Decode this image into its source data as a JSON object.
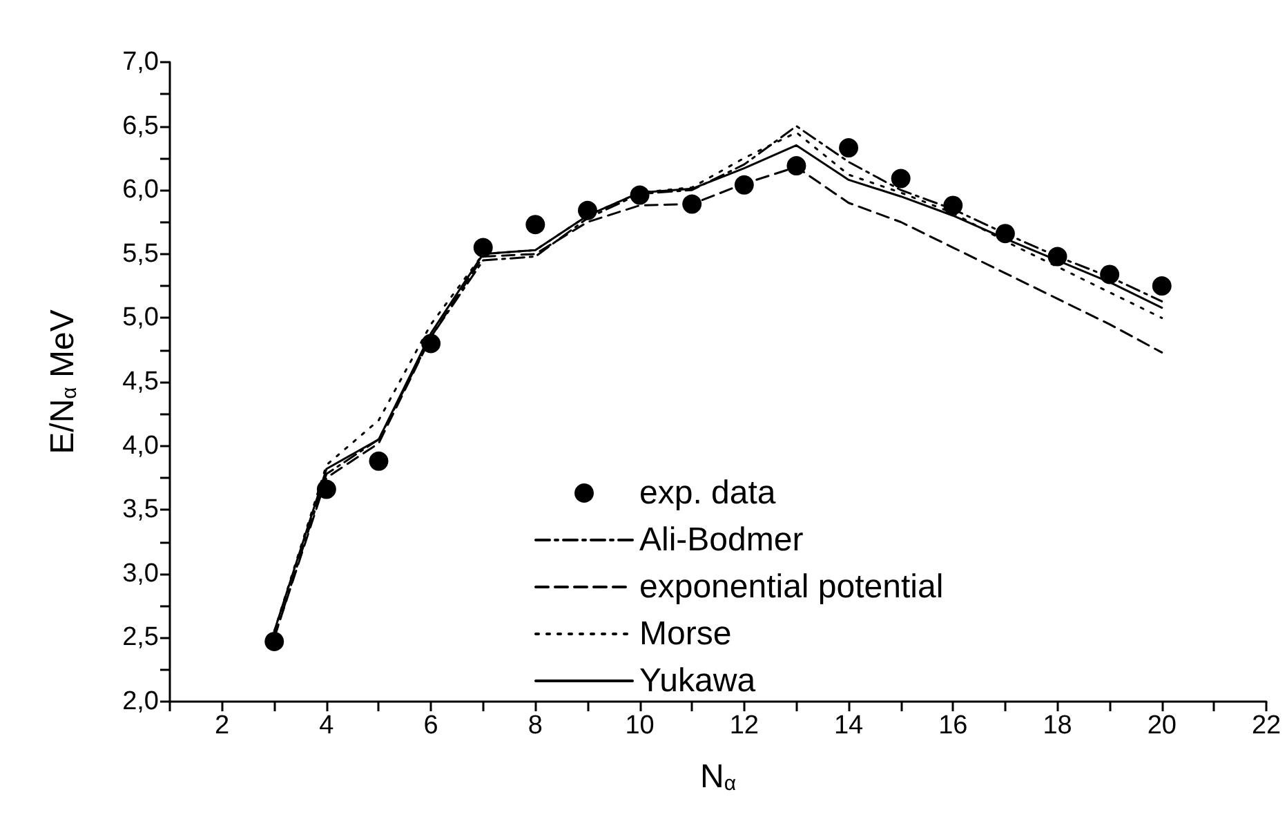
{
  "chart_data": {
    "type": "line",
    "xlabel": "N$_{α}$",
    "ylabel": "E/N$_{α}$ MeV",
    "x": [
      3,
      4,
      5,
      6,
      7,
      8,
      9,
      10,
      11,
      12,
      13,
      14,
      15,
      16,
      17,
      18,
      19,
      20
    ],
    "series": [
      {
        "name": "exp. data",
        "type": "scatter",
        "marker": "circle",
        "color": "#000000",
        "values": [
          2.47,
          3.66,
          3.88,
          4.8,
          5.55,
          5.73,
          5.84,
          5.96,
          5.89,
          6.04,
          6.19,
          6.33,
          6.09,
          5.88,
          5.66,
          5.48,
          5.34,
          5.25
        ]
      },
      {
        "name": "Ali-Bodmer",
        "line_style": "dashdot",
        "color": "#000000",
        "values": [
          2.5,
          3.78,
          4.05,
          4.85,
          5.45,
          5.48,
          5.78,
          5.97,
          6.0,
          6.2,
          6.5,
          6.22,
          6.0,
          5.85,
          5.66,
          5.48,
          5.32,
          5.13
        ]
      },
      {
        "name": "exponential potential",
        "line_style": "dashed",
        "color": "#000000",
        "values": [
          2.5,
          3.75,
          4.02,
          4.85,
          5.48,
          5.5,
          5.75,
          5.88,
          5.89,
          6.05,
          6.18,
          5.9,
          5.75,
          5.55,
          5.35,
          5.15,
          4.95,
          4.73
        ]
      },
      {
        "name": "Morse",
        "line_style": "dotted",
        "color": "#000000",
        "values": [
          2.55,
          3.85,
          4.2,
          4.95,
          5.5,
          5.53,
          5.8,
          5.98,
          6.02,
          6.25,
          6.45,
          6.12,
          5.98,
          5.82,
          5.6,
          5.4,
          5.2,
          5.0
        ]
      },
      {
        "name": "Yukawa",
        "line_style": "solid",
        "color": "#000000",
        "values": [
          2.55,
          3.82,
          4.05,
          4.88,
          5.5,
          5.53,
          5.8,
          5.98,
          6.01,
          6.17,
          6.35,
          6.08,
          5.95,
          5.8,
          5.62,
          5.45,
          5.28,
          5.08
        ]
      }
    ],
    "xlim": [
      1,
      22
    ],
    "xticks": [
      2,
      4,
      6,
      8,
      10,
      12,
      14,
      16,
      18,
      20,
      22
    ],
    "ylim": [
      2,
      7
    ],
    "yticks": [
      {
        "value": 2,
        "label": "2,0"
      },
      {
        "value": 2.5,
        "label": "2,5"
      },
      {
        "value": 3,
        "label": "3,0"
      },
      {
        "value": 3.5,
        "label": "3,5"
      },
      {
        "value": 4,
        "label": "4,0"
      },
      {
        "value": 4.5,
        "label": "4,5"
      },
      {
        "value": 5,
        "label": "5,0"
      },
      {
        "value": 5.5,
        "label": "5,5"
      },
      {
        "value": 6,
        "label": "6,0"
      },
      {
        "value": 6.5,
        "label": "6,5"
      },
      {
        "value": 7,
        "label": "7,0"
      }
    ],
    "grid": false,
    "legend": "center"
  }
}
